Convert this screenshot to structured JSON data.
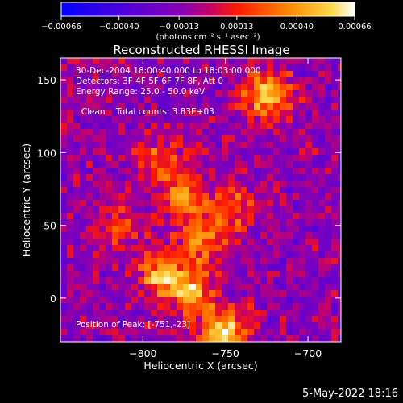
{
  "chart_data": {
    "type": "heatmap",
    "title": "Reconstructed RHESSI Image",
    "xlabel": "Heliocentric X (arcsec)",
    "ylabel": "Heliocentric Y (arcsec)",
    "xlim": [
      -850,
      -680
    ],
    "ylim": [
      -30,
      165
    ],
    "x_ticks": [
      -800,
      -750,
      -700
    ],
    "x_tick_labels": [
      "−800",
      "−750",
      "−700"
    ],
    "y_ticks": [
      0,
      50,
      100,
      150
    ],
    "y_tick_labels": [
      "0",
      "50",
      "100",
      "150"
    ],
    "colorbar": {
      "range": [
        -0.00066,
        0.00066
      ],
      "ticks": [
        -0.00066,
        -0.0004,
        -0.00013,
        0.00013,
        0.0004,
        0.00066
      ],
      "tick_labels": [
        "−0.00066",
        "−0.00040",
        "−0.00013",
        "0.00013",
        "0.00040",
        "0.00066"
      ],
      "unit_label": "(photons cm⁻² s⁻¹ asec⁻²)",
      "colors": [
        "#0000ff",
        "#6a00c8",
        "#b000a0",
        "#ff1a00",
        "#ff8c00",
        "#ffffff"
      ]
    },
    "peak": {
      "x": -751,
      "y": -23
    },
    "sources": [
      {
        "x": -725,
        "y": 140,
        "value": 0.0006
      },
      {
        "x": -790,
        "y": 95,
        "value": 0.00035
      },
      {
        "x": -775,
        "y": 70,
        "value": 0.00045
      },
      {
        "x": -745,
        "y": 60,
        "value": 0.00035
      },
      {
        "x": -765,
        "y": 40,
        "value": 0.0004
      },
      {
        "x": -790,
        "y": 15,
        "value": 0.0005
      },
      {
        "x": -770,
        "y": 5,
        "value": 0.00055
      },
      {
        "x": -751,
        "y": -23,
        "value": 0.00066
      },
      {
        "x": -812,
        "y": 50,
        "value": 0.0003
      }
    ]
  },
  "info": {
    "time_range": "30-Dec-2004 18:00:40.000 to 18:03:00.000",
    "detectors": "Detectors: 3F 4F 5F 6F 7F 8F, Att 0",
    "energy_range": "Energy Range: 25.0 - 50.0 keV",
    "method": "Clean",
    "total_counts": "Total counts: 3.83E+03",
    "peak_label": "Position of Peak: [-751,-23]"
  },
  "timestamp": "5-May-2022 18:16"
}
